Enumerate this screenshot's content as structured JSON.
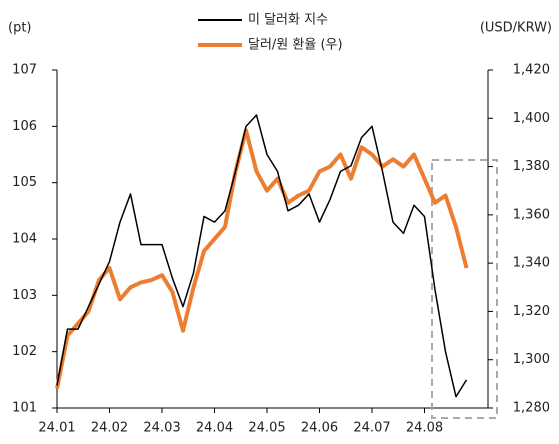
{
  "chart_data": {
    "type": "line",
    "y_label": "(pt)",
    "y2_label": "(USD/KRW)",
    "categories": [
      "24.01",
      null,
      null,
      null,
      null,
      "24.02",
      null,
      null,
      null,
      null,
      "24.03",
      null,
      null,
      null,
      null,
      "24.04",
      null,
      null,
      null,
      null,
      "24.05",
      null,
      null,
      null,
      null,
      "24.06",
      null,
      null,
      null,
      null,
      "24.07",
      null,
      null,
      null,
      null,
      "24.08",
      null,
      null,
      null,
      null
    ],
    "series": [
      {
        "name": "미 달러화 지수",
        "color": "#000000",
        "axis": "y",
        "values": [
          101.4,
          102.4,
          102.4,
          102.8,
          103.2,
          103.6,
          104.3,
          104.8,
          103.9,
          103.9,
          103.9,
          103.3,
          102.8,
          103.4,
          104.4,
          104.3,
          104.5,
          105.2,
          106.0,
          106.2,
          105.5,
          105.2,
          104.5,
          104.6,
          104.8,
          104.3,
          104.7,
          105.2,
          105.3,
          105.8,
          106.0,
          105.2,
          104.3,
          104.1,
          104.6,
          104.4,
          103.1,
          102.0,
          101.2,
          101.5
        ]
      },
      {
        "name": "달러/원 환율 (우)",
        "color": "#ed7d31",
        "axis": "y2",
        "values": [
          1288,
          1310,
          1315,
          1320,
          1333,
          1338,
          1325,
          1330,
          1332,
          1333,
          1335,
          1328,
          1312,
          1330,
          1345,
          1350,
          1355,
          1378,
          1395,
          1378,
          1370,
          1375,
          1365,
          1368,
          1370,
          1378,
          1380,
          1385,
          1375,
          1388,
          1385,
          1380,
          1383,
          1380,
          1385,
          1375,
          1365,
          1368,
          1355,
          1338
        ]
      }
    ],
    "ylim": [
      101,
      107
    ],
    "yticks": [
      101,
      102,
      103,
      104,
      105,
      106,
      107
    ],
    "y2lim": [
      1280,
      1420
    ],
    "y2ticks": [
      {
        "value": 1280,
        "label": "1,280"
      },
      {
        "value": 1300,
        "label": "1,300"
      },
      {
        "value": 1320,
        "label": "1,320"
      },
      {
        "value": 1340,
        "label": "1,340"
      },
      {
        "value": 1360,
        "label": "1,360"
      },
      {
        "value": 1380,
        "label": "1,380"
      },
      {
        "value": 1400,
        "label": "1,400"
      },
      {
        "value": 1420,
        "label": "1,420"
      }
    ],
    "grid": false
  }
}
